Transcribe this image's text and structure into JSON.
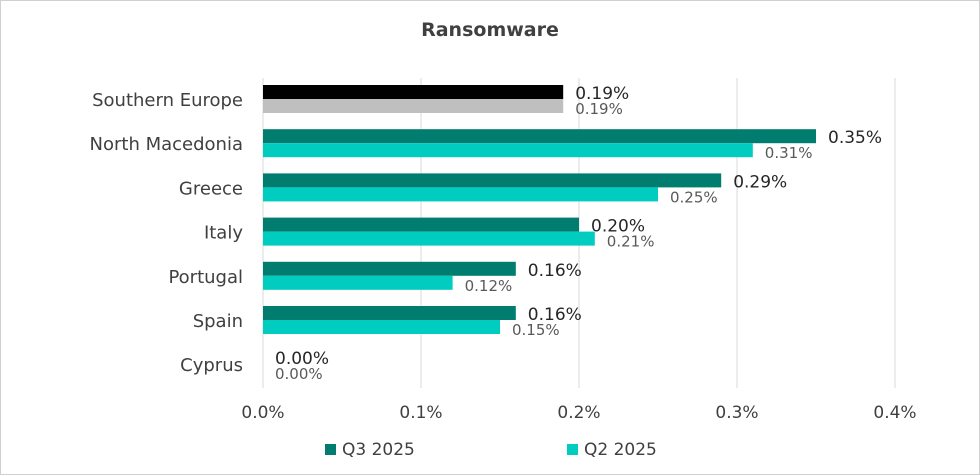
{
  "chart_data": {
    "type": "bar",
    "orientation": "horizontal",
    "title": "Ransomware",
    "categories": [
      "Southern Europe",
      "North Macedonia",
      "Greece",
      "Italy",
      "Portugal",
      "Spain",
      "Cyprus"
    ],
    "series": [
      {
        "name": "Q3 2025",
        "values": [
          0.19,
          0.35,
          0.29,
          0.2,
          0.16,
          0.16,
          0.0
        ],
        "labels": [
          "0.19%",
          "0.35%",
          "0.29%",
          "0.20%",
          "0.16%",
          "0.16%",
          "0.00%"
        ],
        "color": "#007d6f",
        "highlight_color": "#000000"
      },
      {
        "name": "Q2 2025",
        "values": [
          0.19,
          0.31,
          0.25,
          0.21,
          0.12,
          0.15,
          0.0
        ],
        "labels": [
          "0.19%",
          "0.31%",
          "0.25%",
          "0.21%",
          "0.12%",
          "0.15%",
          "0.00%"
        ],
        "color": "#00ccc0",
        "highlight_color": "#bfbfbf"
      }
    ],
    "highlight_category": "Southern Europe",
    "xlim": [
      0,
      0.4
    ],
    "xticks": [
      0,
      0.1,
      0.2,
      0.3,
      0.4
    ],
    "xtick_labels": [
      "0.0%",
      "0.1%",
      "0.2%",
      "0.3%",
      "0.4%"
    ],
    "grid": "vertical",
    "legend": "bottom"
  }
}
